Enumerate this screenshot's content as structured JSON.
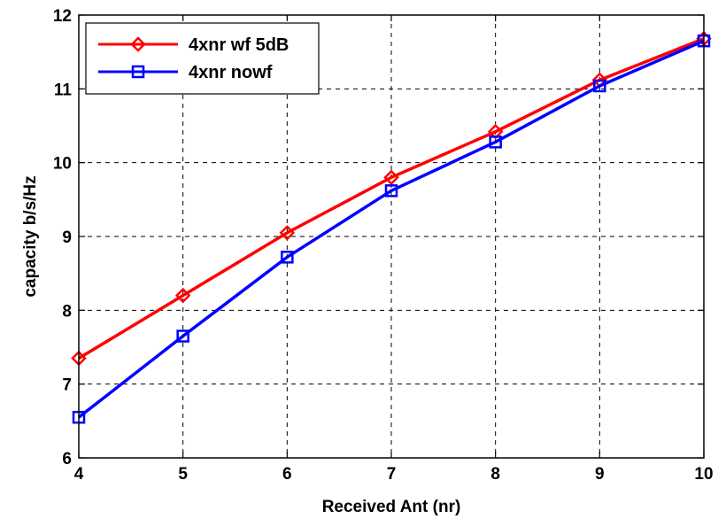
{
  "chart_data": {
    "type": "line",
    "title": "",
    "xlabel": "Received Ant (nr)",
    "ylabel": "capacity b/s/Hz",
    "xlim": [
      4,
      10
    ],
    "ylim": [
      6,
      12
    ],
    "xticks": [
      4,
      5,
      6,
      7,
      8,
      9,
      10
    ],
    "yticks": [
      6,
      7,
      8,
      9,
      10,
      11,
      12
    ],
    "grid": true,
    "legend_position": "top-left",
    "x": [
      4,
      5,
      6,
      7,
      8,
      9,
      10
    ],
    "series": [
      {
        "name": "4xnr wf 5dB",
        "color": "#ff0000",
        "marker": "diamond",
        "values": [
          7.35,
          8.2,
          9.05,
          9.8,
          10.42,
          11.12,
          11.68
        ]
      },
      {
        "name": "4xnr nowf",
        "color": "#0000ff",
        "marker": "square",
        "values": [
          6.55,
          7.65,
          8.72,
          9.62,
          10.28,
          11.04,
          11.65
        ]
      }
    ]
  }
}
